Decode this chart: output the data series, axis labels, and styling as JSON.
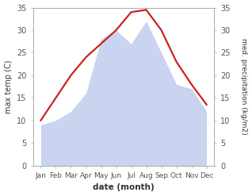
{
  "months": [
    "Jan",
    "Feb",
    "Mar",
    "Apr",
    "May",
    "Jun",
    "Jul",
    "Aug",
    "Sep",
    "Oct",
    "Nov",
    "Dec"
  ],
  "temperature": [
    10,
    15,
    20,
    24,
    27,
    30,
    34,
    34.5,
    30,
    23,
    18,
    13.5
  ],
  "precipitation": [
    9,
    10,
    12,
    16,
    28,
    30,
    27,
    32,
    25,
    18,
    17,
    12
  ],
  "temp_color": "#cc2222",
  "precip_fill_color": "#c8d4f0",
  "ylabel_left": "max temp (C)",
  "ylabel_right": "med. precipitation (kg/m2)",
  "xlabel": "date (month)",
  "ylim": [
    0,
    35
  ],
  "yticks": [
    0,
    5,
    10,
    15,
    20,
    25,
    30,
    35
  ],
  "background_color": "#ffffff",
  "spine_color": "#aaaaaa",
  "tick_color": "#555555",
  "font_color": "#333333"
}
